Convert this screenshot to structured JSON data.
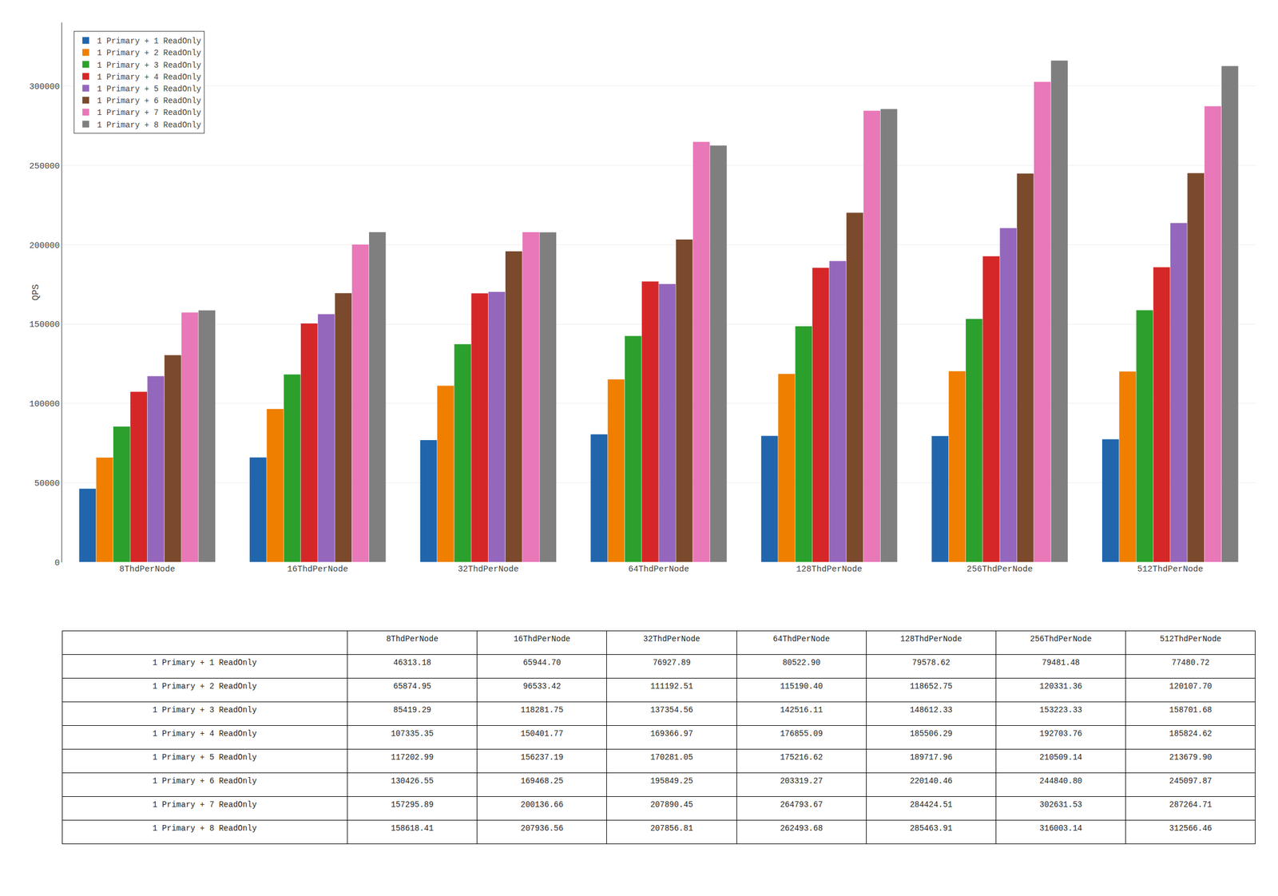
{
  "chart_data": {
    "type": "bar",
    "categories": [
      "8ThdPerNode",
      "16ThdPerNode",
      "32ThdPerNode",
      "64ThdPerNode",
      "128ThdPerNode",
      "256ThdPerNode",
      "512ThdPerNode"
    ],
    "series": [
      {
        "name": "1 Primary + 1 ReadOnly",
        "color": "#2166ac",
        "values": [
          46313.18,
          65944.7,
          76927.89,
          80522.9,
          79578.62,
          79481.48,
          77480.72
        ],
        "value_labels": [
          "46313.18",
          "65944.70",
          "76927.89",
          "80522.90",
          "79578.62",
          "79481.48",
          "77480.72"
        ]
      },
      {
        "name": "1 Primary + 2 ReadOnly",
        "color": "#f07f00",
        "values": [
          65874.95,
          96533.42,
          111192.51,
          115190.4,
          118652.75,
          120331.36,
          120107.7
        ],
        "value_labels": [
          "65874.95",
          "96533.42",
          "111192.51",
          "115190.40",
          "118652.75",
          "120331.36",
          "120107.70"
        ]
      },
      {
        "name": "1 Primary + 3 ReadOnly",
        "color": "#2ca02c",
        "values": [
          85419.29,
          118281.75,
          137354.56,
          142516.11,
          148612.33,
          153223.33,
          158701.68
        ],
        "value_labels": [
          "85419.29",
          "118281.75",
          "137354.56",
          "142516.11",
          "148612.33",
          "153223.33",
          "158701.68"
        ]
      },
      {
        "name": "1 Primary + 4 ReadOnly",
        "color": "#d62728",
        "values": [
          107335.35,
          150401.77,
          169366.97,
          176855.09,
          185506.29,
          192703.76,
          185824.62
        ],
        "value_labels": [
          "107335.35",
          "150401.77",
          "169366.97",
          "176855.09",
          "185506.29",
          "192703.76",
          "185824.62"
        ]
      },
      {
        "name": "1 Primary + 5 ReadOnly",
        "color": "#9467bd",
        "values": [
          117202.99,
          156237.19,
          170281.05,
          175216.62,
          189717.96,
          210509.14,
          213679.9
        ],
        "value_labels": [
          "117202.99",
          "156237.19",
          "170281.05",
          "175216.62",
          "189717.96",
          "210509.14",
          "213679.90"
        ]
      },
      {
        "name": "1 Primary + 6 ReadOnly",
        "color": "#7b4a2d",
        "values": [
          130426.55,
          169468.25,
          195849.25,
          203319.27,
          220140.46,
          244840.8,
          245097.87
        ],
        "value_labels": [
          "130426.55",
          "169468.25",
          "195849.25",
          "203319.27",
          "220140.46",
          "244840.80",
          "245097.87"
        ]
      },
      {
        "name": "1 Primary + 7 ReadOnly",
        "color": "#e878b8",
        "values": [
          157295.89,
          200136.66,
          207890.45,
          264793.67,
          284424.51,
          302631.53,
          287264.71
        ],
        "value_labels": [
          "157295.89",
          "200136.66",
          "207890.45",
          "264793.67",
          "284424.51",
          "302631.53",
          "287264.71"
        ]
      },
      {
        "name": "1 Primary + 8 ReadOnly",
        "color": "#7f7f7f",
        "values": [
          158618.41,
          207936.56,
          207856.81,
          262493.68,
          285463.91,
          316003.14,
          312566.46
        ],
        "value_labels": [
          "158618.41",
          "207936.56",
          "207856.81",
          "262493.68",
          "285463.91",
          "316003.14",
          "312566.46"
        ]
      }
    ],
    "ylabel": "QPS",
    "ylim": [
      0,
      340000
    ],
    "yticks": [
      0,
      50000,
      100000,
      150000,
      200000,
      250000,
      300000
    ],
    "grid": true,
    "legend": "upper left"
  }
}
